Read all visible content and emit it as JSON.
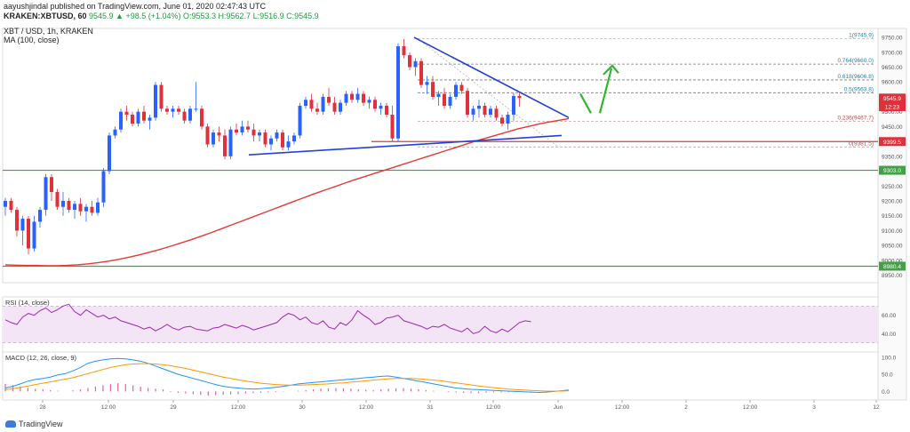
{
  "header": {
    "publisher_line": "aayushjindal published on TradingView.com, June 01, 2020 02:47:43 UTC",
    "symbol": "KRAKEN:XBTUSD, 60",
    "ohlc": "9545.9 ▲ +98.5 (+1.04%) O:9553.3 H:9562.7 L:9516.9 C:9545.9",
    "title": "XBT / USD, 1h, KRAKEN",
    "indicator": "MA (100, close)"
  },
  "brand": "TradingView",
  "colors": {
    "up": "#2962ff",
    "down": "#e0303a",
    "ma": "#e53935",
    "trend": "#2340d8",
    "support": "#43a047",
    "resistance": "#e53935",
    "rsi": "#9c27b0",
    "rsi_band": "#f3e5f5",
    "macd": "#2196f3",
    "signal": "#ff9800",
    "hist": "#ef5d9a",
    "arrow": "#2eb82e",
    "fib": "#4fa3c6"
  },
  "chart_data": [
    {
      "type": "candlestick",
      "title": "XBT / USD, 1h, KRAKEN",
      "ylim": [
        8925,
        9780
      ],
      "y_ticks": [
        8950,
        9000,
        9050,
        9100,
        9150,
        9200,
        9250,
        9300,
        9350,
        9400,
        9450,
        9500,
        9550,
        9600,
        9650,
        9700,
        9750
      ],
      "x_labels": [
        "28",
        "12:00",
        "29",
        "12:00",
        "30",
        "12:00",
        "31",
        "12:00",
        "Jun",
        "12:00",
        "2",
        "12:00",
        "3",
        "12"
      ],
      "candles": [
        [
          9180,
          9210,
          9150,
          9200
        ],
        [
          9200,
          9210,
          9160,
          9170
        ],
        [
          9170,
          9180,
          9080,
          9100
        ],
        [
          9100,
          9150,
          9050,
          9140
        ],
        [
          9140,
          9150,
          9020,
          9040
        ],
        [
          9040,
          9150,
          9030,
          9130
        ],
        [
          9130,
          9180,
          9110,
          9170
        ],
        [
          9170,
          9290,
          9150,
          9280
        ],
        [
          9280,
          9290,
          9200,
          9230
        ],
        [
          9230,
          9240,
          9170,
          9180
        ],
        [
          9180,
          9230,
          9150,
          9200
        ],
        [
          9200,
          9210,
          9160,
          9170
        ],
        [
          9170,
          9200,
          9140,
          9190
        ],
        [
          9190,
          9210,
          9150,
          9165
        ],
        [
          9165,
          9190,
          9130,
          9180
        ],
        [
          9180,
          9200,
          9150,
          9160
        ],
        [
          9160,
          9210,
          9150,
          9195
        ],
        [
          9195,
          9310,
          9180,
          9300
        ],
        [
          9300,
          9430,
          9290,
          9420
        ],
        [
          9420,
          9450,
          9410,
          9440
        ],
        [
          9440,
          9510,
          9430,
          9500
        ],
        [
          9500,
          9520,
          9470,
          9490
        ],
        [
          9490,
          9500,
          9450,
          9460
        ],
        [
          9460,
          9510,
          9450,
          9500
        ],
        [
          9500,
          9520,
          9460,
          9470
        ],
        [
          9470,
          9490,
          9440,
          9480
        ],
        [
          9480,
          9600,
          9470,
          9590
        ],
        [
          9590,
          9600,
          9500,
          9510
        ],
        [
          9510,
          9520,
          9490,
          9500
        ],
        [
          9500,
          9520,
          9480,
          9510
        ],
        [
          9510,
          9520,
          9490,
          9500
        ],
        [
          9500,
          9510,
          9460,
          9470
        ],
        [
          9470,
          9520,
          9460,
          9510
        ],
        [
          9510,
          9600,
          9500,
          9510
        ],
        [
          9510,
          9520,
          9440,
          9450
        ],
        [
          9450,
          9460,
          9380,
          9390
        ],
        [
          9390,
          9440,
          9380,
          9430
        ],
        [
          9430,
          9450,
          9400,
          9420
        ],
        [
          9420,
          9440,
          9340,
          9350
        ],
        [
          9350,
          9450,
          9340,
          9440
        ],
        [
          9440,
          9460,
          9420,
          9430
        ],
        [
          9430,
          9470,
          9420,
          9450
        ],
        [
          9450,
          9470,
          9430,
          9440
        ],
        [
          9440,
          9460,
          9400,
          9420
        ],
        [
          9420,
          9440,
          9400,
          9430
        ],
        [
          9430,
          9440,
          9380,
          9390
        ],
        [
          9390,
          9420,
          9370,
          9410
        ],
        [
          9410,
          9440,
          9400,
          9430
        ],
        [
          9430,
          9440,
          9370,
          9380
        ],
        [
          9380,
          9420,
          9370,
          9400
        ],
        [
          9400,
          9430,
          9390,
          9420
        ],
        [
          9420,
          9530,
          9410,
          9520
        ],
        [
          9520,
          9550,
          9510,
          9540
        ],
        [
          9540,
          9560,
          9500,
          9510
        ],
        [
          9510,
          9530,
          9490,
          9500
        ],
        [
          9500,
          9560,
          9490,
          9550
        ],
        [
          9550,
          9580,
          9520,
          9530
        ],
        [
          9530,
          9550,
          9490,
          9500
        ],
        [
          9500,
          9540,
          9490,
          9530
        ],
        [
          9530,
          9570,
          9520,
          9560
        ],
        [
          9560,
          9570,
          9530,
          9540
        ],
        [
          9540,
          9580,
          9530,
          9560
        ],
        [
          9560,
          9570,
          9520,
          9530
        ],
        [
          9530,
          9550,
          9510,
          9540
        ],
        [
          9540,
          9550,
          9500,
          9510
        ],
        [
          9510,
          9530,
          9490,
          9520
        ],
        [
          9520,
          9530,
          9480,
          9490
        ],
        [
          9490,
          9520,
          9400,
          9410
        ],
        [
          9410,
          9730,
          9400,
          9720
        ],
        [
          9720,
          9745,
          9680,
          9690
        ],
        [
          9690,
          9700,
          9640,
          9650
        ],
        [
          9650,
          9680,
          9620,
          9670
        ],
        [
          9670,
          9680,
          9580,
          9590
        ],
        [
          9590,
          9620,
          9560,
          9600
        ],
        [
          9600,
          9620,
          9540,
          9550
        ],
        [
          9550,
          9570,
          9520,
          9560
        ],
        [
          9560,
          9580,
          9510,
          9520
        ],
        [
          9520,
          9560,
          9510,
          9550
        ],
        [
          9550,
          9600,
          9540,
          9590
        ],
        [
          9590,
          9600,
          9560,
          9570
        ],
        [
          9570,
          9580,
          9480,
          9490
        ],
        [
          9490,
          9520,
          9470,
          9510
        ],
        [
          9510,
          9540,
          9480,
          9520
        ],
        [
          9520,
          9530,
          9480,
          9490
        ],
        [
          9490,
          9520,
          9480,
          9510
        ],
        [
          9510,
          9520,
          9470,
          9480
        ],
        [
          9480,
          9490,
          9450,
          9460
        ],
        [
          9460,
          9500,
          9440,
          9490
        ],
        [
          9490,
          9563,
          9470,
          9553
        ],
        [
          9553,
          9563,
          9517,
          9546
        ]
      ],
      "ma_100": [
        8985,
        8984,
        8983,
        8983,
        8982,
        8982,
        8983,
        8985,
        8988,
        8992,
        8997,
        9003,
        9010,
        9018,
        9027,
        9036,
        9046,
        9057,
        9068,
        9080,
        9092,
        9105,
        9118,
        9131,
        9144,
        9157,
        9170,
        9183,
        9196,
        9209,
        9222,
        9234,
        9246,
        9258,
        9270,
        9281,
        9292,
        9303,
        9314,
        9325,
        9336,
        9347,
        9358,
        9369,
        9380,
        9391,
        9402,
        9412,
        9422,
        9432,
        9442,
        9450,
        9458,
        9465,
        9471,
        9477
      ],
      "price_labels": [
        "9545.9",
        "12:23",
        "9399.5",
        "9303.0",
        "8980.4"
      ],
      "fib_levels": [
        {
          "label": "1(9745.9)",
          "value": 9745.9
        },
        {
          "label": "0.764(9660.0)",
          "value": 9660.0
        },
        {
          "label": "0.618(9606.8)",
          "value": 9606.8
        },
        {
          "label": "0.5(9563.8)",
          "value": 9563.8
        },
        {
          "label": "0.236(9467.7)",
          "value": 9467.7
        },
        {
          "label": "0(9381.5)",
          "value": 9381.5
        }
      ],
      "horizontal_levels": [
        9399.5,
        9303.0,
        8980.4
      ]
    },
    {
      "type": "line",
      "title": "RSI (14, close)",
      "ylim": [
        20,
        80
      ],
      "y_ticks": [
        40,
        60
      ],
      "band": [
        30,
        70
      ],
      "values": [
        55,
        52,
        50,
        58,
        62,
        60,
        65,
        68,
        63,
        66,
        70,
        72,
        64,
        60,
        66,
        62,
        58,
        60,
        56,
        58,
        54,
        52,
        50,
        48,
        45,
        47,
        43,
        46,
        50,
        46,
        44,
        47,
        48,
        45,
        44,
        43,
        46,
        47,
        50,
        48,
        46,
        49,
        47,
        44,
        46,
        48,
        50,
        52,
        58,
        62,
        60,
        55,
        58,
        52,
        50,
        54,
        47,
        45,
        52,
        49,
        55,
        65,
        60,
        56,
        50,
        52,
        57,
        58,
        60,
        54,
        52,
        50,
        48,
        45,
        48,
        47,
        50,
        46,
        44,
        42,
        46,
        40,
        42,
        48,
        43,
        41,
        45,
        42,
        47,
        52,
        54,
        53
      ]
    },
    {
      "type": "line",
      "title": "MACD (12, 26, close, 9)",
      "ylim": [
        -25,
        115
      ],
      "y_ticks": [
        100.0,
        50.0,
        0.0
      ],
      "macd": [
        10,
        15,
        22,
        30,
        35,
        38,
        42,
        48,
        52,
        60,
        70,
        82,
        88,
        92,
        95,
        96,
        95,
        92,
        88,
        82,
        74,
        66,
        58,
        50,
        44,
        38,
        32,
        26,
        20,
        15,
        12,
        10,
        8,
        7,
        8,
        10,
        12,
        15,
        18,
        22,
        24,
        26,
        28,
        30,
        32,
        34,
        36,
        38,
        40,
        42,
        44,
        45,
        42,
        38,
        34,
        30,
        26,
        22,
        18,
        14,
        10,
        8,
        6,
        5,
        4,
        3,
        2,
        1,
        0,
        -1,
        -2,
        -3,
        -2,
        0,
        2,
        4
      ],
      "signal": [
        5,
        8,
        12,
        16,
        20,
        24,
        28,
        32,
        36,
        40,
        46,
        52,
        58,
        64,
        70,
        74,
        78,
        80,
        81,
        81,
        80,
        78,
        75,
        71,
        67,
        62,
        57,
        52,
        47,
        42,
        38,
        34,
        30,
        27,
        24,
        22,
        20,
        19,
        18,
        18,
        19,
        20,
        21,
        22,
        24,
        25,
        27,
        29,
        31,
        33,
        35,
        37,
        38,
        38,
        38,
        37,
        35,
        33,
        31,
        28,
        25,
        22,
        19,
        16,
        13,
        11,
        9,
        7,
        5,
        4,
        3,
        2,
        1,
        1,
        1,
        2
      ],
      "histogram": [
        22,
        18,
        14,
        10,
        8,
        6,
        4,
        2,
        0,
        3,
        6,
        10,
        14,
        18,
        21,
        24,
        22,
        18,
        14,
        10,
        8,
        6,
        -2,
        -4,
        -6,
        -8,
        -10,
        -12,
        -11,
        -10,
        -9,
        -8,
        -6,
        -5,
        -4,
        -3,
        -2,
        -1,
        0,
        2,
        4,
        6,
        8,
        9,
        10,
        9,
        8,
        6,
        5,
        4,
        6,
        8,
        9,
        10,
        8,
        6,
        4,
        2,
        0,
        -2,
        -3,
        -4,
        -5,
        -5,
        -4,
        -3,
        -3,
        -2,
        -2,
        -1,
        -1,
        0,
        0,
        1
      ]
    }
  ]
}
